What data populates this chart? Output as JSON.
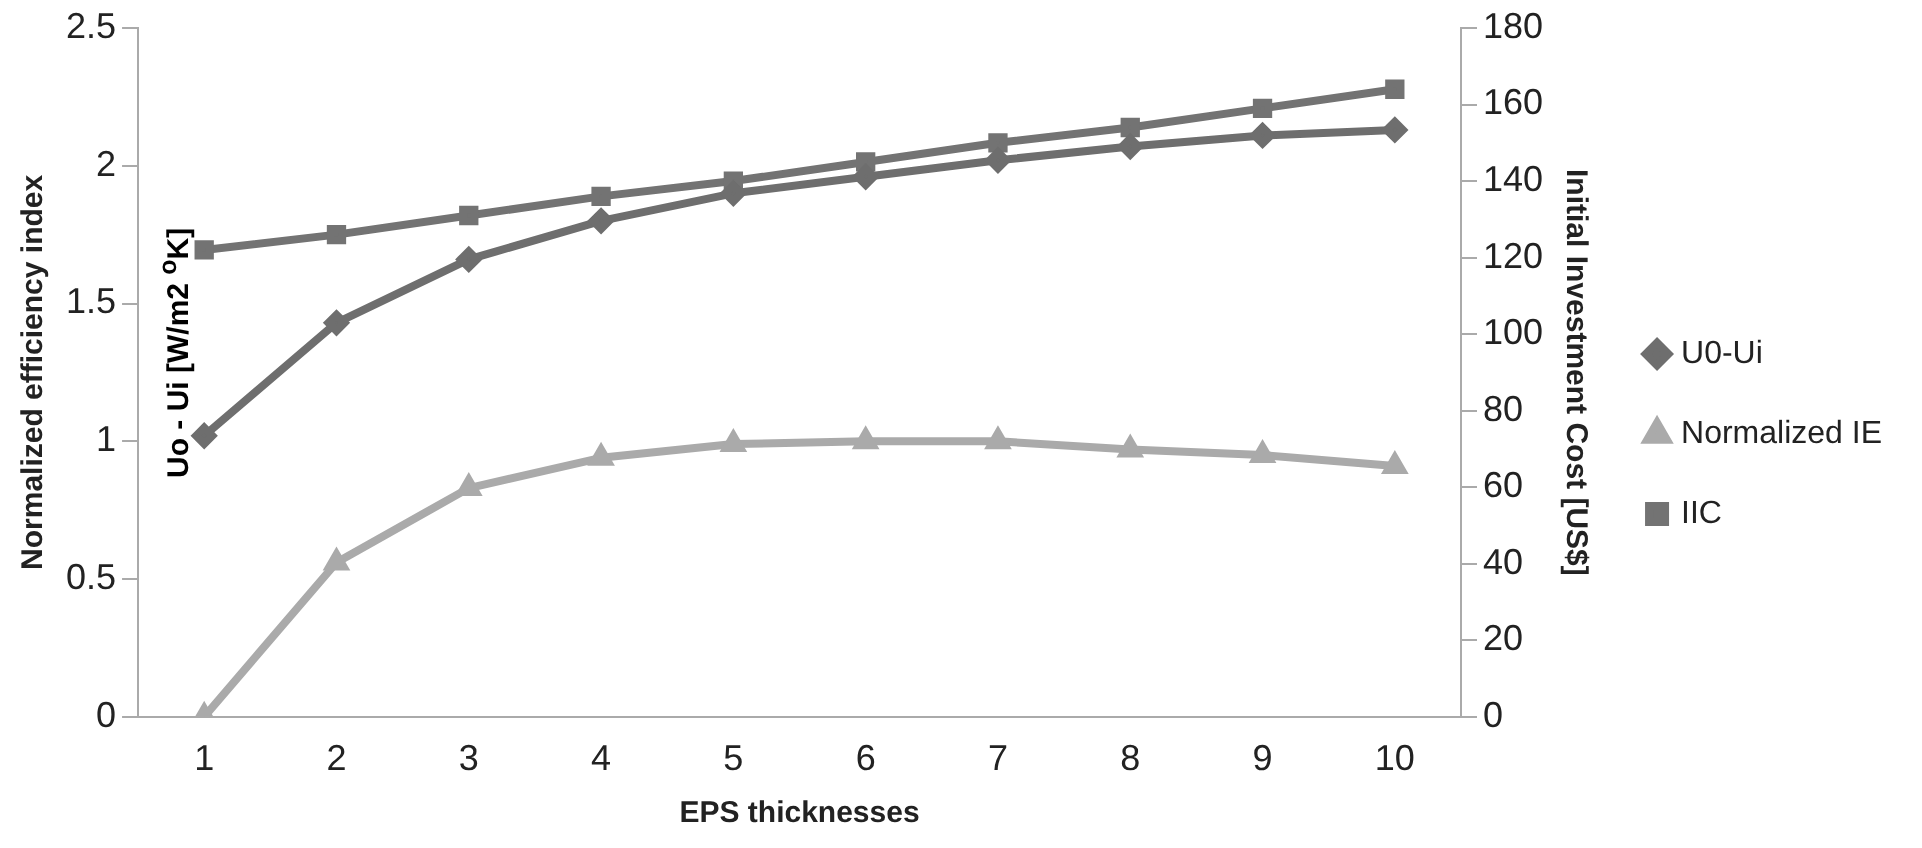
{
  "chart_data": {
    "type": "line",
    "xlabel": "EPS thicknesses",
    "ylabel": "Normalized efficiency index",
    "y2label": "Initial Investment Cost [US$]",
    "annotations": [
      "Uo - Ui [W/m2 $^{o}$K]"
    ],
    "categories": [
      "1",
      "2",
      "3",
      "4",
      "5",
      "6",
      "7",
      "8",
      "9",
      "10"
    ],
    "series": [
      {
        "name": "U0-Ui",
        "color": "#6e6e6e",
        "marker": "diamond",
        "values": [
          1.02,
          1.43,
          1.66,
          1.8,
          1.9,
          1.96,
          2.02,
          2.07,
          2.11,
          2.13
        ]
      },
      {
        "name": "Normalized IE",
        "color": "#aaaaaa",
        "marker": "triangle",
        "values": [
          0,
          0.56,
          0.83,
          0.94,
          0.99,
          1.0,
          1.0,
          0.97,
          0.95,
          0.91
        ]
      },
      {
        "name": "IIC",
        "color": "#737373",
        "marker": "square",
        "axis": "y2",
        "values": [
          122,
          126,
          131,
          136,
          140,
          145,
          150,
          154,
          159,
          164
        ]
      }
    ],
    "ylim": [
      0,
      2.5
    ],
    "yticks": [
      0,
      0.5,
      1,
      1.5,
      2,
      2.5
    ],
    "y2lim": [
      0,
      180
    ],
    "y2ticks": [
      0,
      20,
      40,
      60,
      80,
      100,
      120,
      140,
      160,
      180
    ],
    "grid": false,
    "legend": "right",
    "line_style": "solid"
  }
}
